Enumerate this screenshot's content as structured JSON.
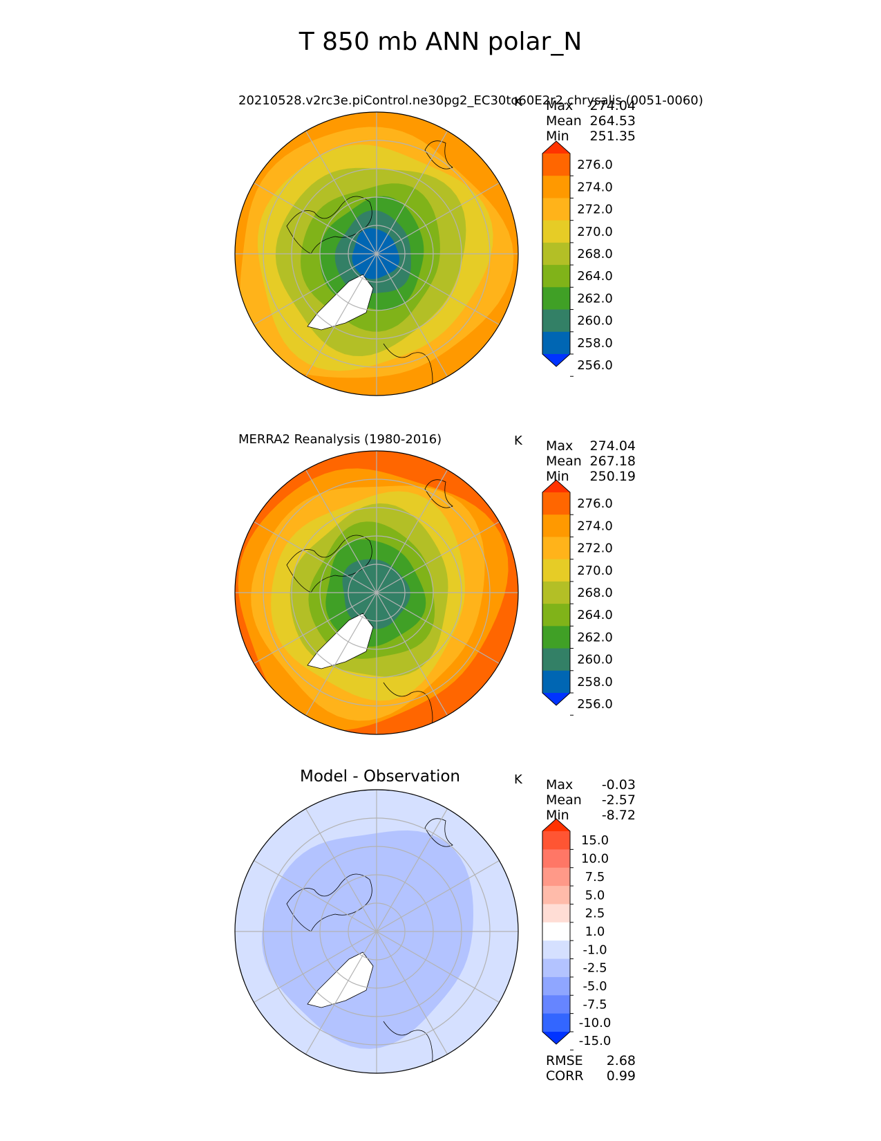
{
  "figure": {
    "title": "T 850 mb ANN polar_N"
  },
  "chart_data": [
    {
      "type": "heatmap",
      "projection": "north-polar-stereographic",
      "title": "20210528.v2rc3e.piControl.ne30pg2_EC30to60E2r2.chrysalis (0051-0060)",
      "units": "K",
      "stats": {
        "max_label": "Max",
        "max": "274.04",
        "mean_label": "Mean",
        "mean": "264.53",
        "min_label": "Min",
        "min": "251.35"
      },
      "levels": [
        "276.0",
        "274.0",
        "272.0",
        "270.0",
        "268.0",
        "264.0",
        "262.0",
        "260.0",
        "258.0",
        "256.0"
      ],
      "colors": [
        "#ff3300",
        "#ff6600",
        "#ff9900",
        "#ffb31a",
        "#e6cc26",
        "#b3bf26",
        "#80b319",
        "#40a026",
        "#338066",
        "#0066b3",
        "#0033ff"
      ],
      "rings": [
        {
          "color": "#0066b3",
          "r": 0.17
        },
        {
          "color": "#338066",
          "r": 0.28
        },
        {
          "color": "#40a026",
          "r": 0.38
        },
        {
          "color": "#80b319",
          "r": 0.5
        },
        {
          "color": "#b3bf26",
          "r": 0.66
        },
        {
          "color": "#e6cc26",
          "r": 0.8
        },
        {
          "color": "#ffb31a",
          "r": 0.92
        },
        {
          "color": "#ff9900",
          "r": 1.0
        }
      ]
    },
    {
      "type": "heatmap",
      "projection": "north-polar-stereographic",
      "title": "MERRA2 Reanalysis (1980-2016)",
      "units": "K",
      "stats": {
        "max_label": "Max",
        "max": "274.04",
        "mean_label": "Mean",
        "mean": "267.18",
        "min_label": "Min",
        "min": "250.19"
      },
      "levels": [
        "276.0",
        "274.0",
        "272.0",
        "270.0",
        "268.0",
        "264.0",
        "262.0",
        "260.0",
        "258.0",
        "256.0"
      ],
      "colors": [
        "#ff3300",
        "#ff6600",
        "#ff9900",
        "#ffb31a",
        "#e6cc26",
        "#b3bf26",
        "#80b319",
        "#40a026",
        "#338066",
        "#0066b3",
        "#0033ff"
      ],
      "rings": [
        {
          "color": "#338066",
          "r": 0.24
        },
        {
          "color": "#40a026",
          "r": 0.36
        },
        {
          "color": "#80b319",
          "r": 0.46
        },
        {
          "color": "#b3bf26",
          "r": 0.58
        },
        {
          "color": "#e6cc26",
          "r": 0.7
        },
        {
          "color": "#ffb31a",
          "r": 0.82
        },
        {
          "color": "#ff9900",
          "r": 0.92
        },
        {
          "color": "#ff6600",
          "r": 1.0
        }
      ]
    },
    {
      "type": "heatmap",
      "projection": "north-polar-stereographic",
      "title": "Model - Observation",
      "units": "K",
      "stats": {
        "max_label": "Max",
        "max": "-0.03",
        "mean_label": "Mean",
        "mean": "-2.57",
        "min_label": "Min",
        "min": "-8.72"
      },
      "levels": [
        "15.0",
        "10.0",
        "7.5",
        "5.0",
        "2.5",
        "1.0",
        "-1.0",
        "-2.5",
        "-5.0",
        "-7.5",
        "-10.0",
        "-15.0"
      ],
      "colors": [
        "#ff3300",
        "#ff5533",
        "#ff7766",
        "#ff9988",
        "#ffbbaa",
        "#ffddd5",
        "#ffffff",
        "#d5e0ff",
        "#b3c3ff",
        "#8fa6ff",
        "#6685ff",
        "#3366ff",
        "#0033ff"
      ],
      "rings": [
        {
          "color": "#b3c3ff",
          "r": 0.75
        },
        {
          "color": "#d5e0ff",
          "r": 1.0
        }
      ],
      "footer": {
        "rmse_label": "RMSE",
        "rmse": "2.68",
        "corr_label": "CORR",
        "corr": "0.99"
      }
    }
  ]
}
